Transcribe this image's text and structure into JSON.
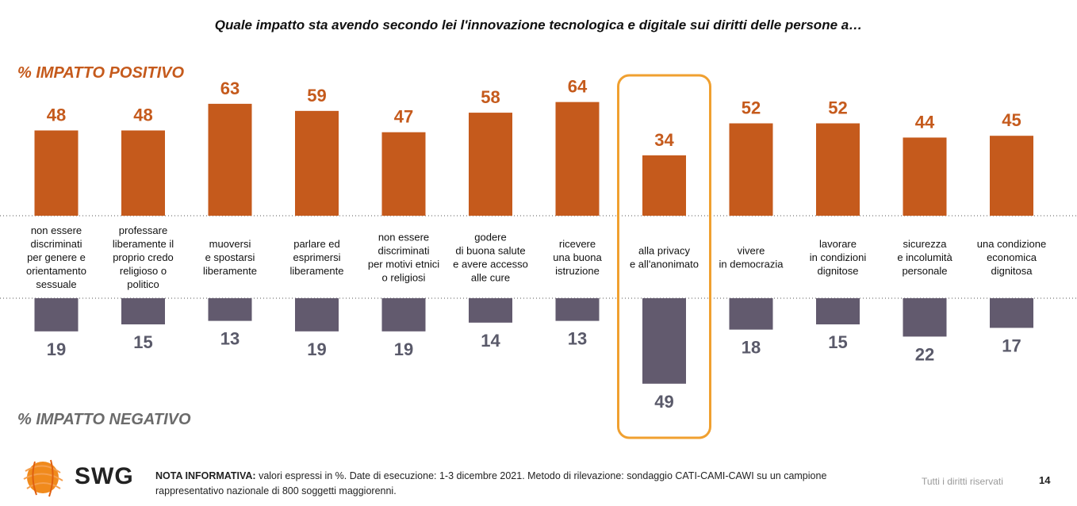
{
  "title": "Quale impatto sta avendo secondo lei l'innovazione tecnologica e digitale sui diritti delle persone a…",
  "positive_label": "% IMPATTO POSITIVO",
  "negative_label": "% IMPATTO NEGATIVO",
  "colors": {
    "positive": "#c55a1c",
    "negative": "#625a6e",
    "highlight": "#f0a030",
    "positive_text": "#c55a1c",
    "negative_text": "#5a5a6a"
  },
  "footer": {
    "note_bold": "NOTA INFORMATIVA:",
    "note_text": " valori espressi in %. Date di esecuzione: 1-3 dicembre 2021. Metodo di rilevazione: sondaggio CATI-CAMI-CAWI su un campione rappresentativo nazionale di 800 soggetti maggiorenni.",
    "rights": "Tutti i diritti riservati",
    "page": "14",
    "logo_text": "SWG"
  },
  "chart_data": {
    "type": "bar",
    "categories": [
      [
        "non essere",
        "discriminati",
        "per genere e",
        "orientamento",
        "sessuale"
      ],
      [
        "professare",
        "liberamente il",
        "proprio credo",
        "religioso o",
        "politico"
      ],
      [
        "muoversi",
        "e spostarsi",
        "liberamente"
      ],
      [
        "parlare ed",
        "esprimersi",
        "liberamente"
      ],
      [
        "non essere",
        "discriminati",
        "per motivi etnici",
        "o religiosi"
      ],
      [
        "godere",
        "di buona salute",
        "e avere accesso",
        "alle cure"
      ],
      [
        "ricevere",
        "una buona",
        "istruzione"
      ],
      [
        "alla privacy",
        "e all'anonimato"
      ],
      [
        "vivere",
        "in democrazia"
      ],
      [
        "lavorare",
        "in condizioni",
        "dignitose"
      ],
      [
        "sicurezza",
        "e incolumità",
        "personale"
      ],
      [
        "una condizione",
        "economica",
        "dignitosa"
      ]
    ],
    "series": [
      {
        "name": "% IMPATTO POSITIVO",
        "values": [
          48,
          48,
          63,
          59,
          47,
          58,
          64,
          34,
          52,
          52,
          44,
          45
        ]
      },
      {
        "name": "% IMPATTO NEGATIVO",
        "values": [
          19,
          15,
          13,
          19,
          19,
          14,
          13,
          49,
          18,
          15,
          22,
          17
        ]
      }
    ],
    "highlighted_category_index": 7,
    "grid": false,
    "legend": "none"
  }
}
